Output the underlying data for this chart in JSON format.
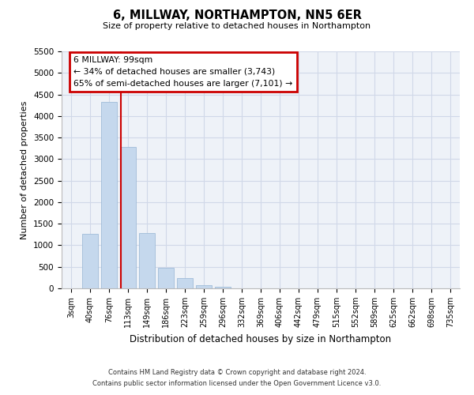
{
  "title": "6, MILLWAY, NORTHAMPTON, NN5 6ER",
  "subtitle": "Size of property relative to detached houses in Northampton",
  "xlabel": "Distribution of detached houses by size in Northampton",
  "ylabel": "Number of detached properties",
  "bar_labels": [
    "3sqm",
    "40sqm",
    "76sqm",
    "113sqm",
    "149sqm",
    "186sqm",
    "223sqm",
    "259sqm",
    "296sqm",
    "332sqm",
    "369sqm",
    "406sqm",
    "442sqm",
    "479sqm",
    "515sqm",
    "552sqm",
    "589sqm",
    "625sqm",
    "662sqm",
    "698sqm",
    "735sqm"
  ],
  "bar_values": [
    0,
    1270,
    4330,
    3280,
    1290,
    480,
    235,
    80,
    45,
    0,
    0,
    0,
    0,
    0,
    0,
    0,
    0,
    0,
    0,
    0,
    0
  ],
  "bar_color": "#c5d8ed",
  "bar_edgecolor": "#a0bcd8",
  "vline_x": 2.62,
  "vline_color": "#cc0000",
  "ylim": [
    0,
    5500
  ],
  "yticks": [
    0,
    500,
    1000,
    1500,
    2000,
    2500,
    3000,
    3500,
    4000,
    4500,
    5000,
    5500
  ],
  "annotation_title": "6 MILLWAY: 99sqm",
  "annotation_line1": "← 34% of detached houses are smaller (3,743)",
  "annotation_line2": "65% of semi-detached houses are larger (7,101) →",
  "annotation_box_edgecolor": "#cc0000",
  "footer1": "Contains HM Land Registry data © Crown copyright and database right 2024.",
  "footer2": "Contains public sector information licensed under the Open Government Licence v3.0.",
  "grid_color": "#d0d8e8",
  "bg_color": "#eef2f8"
}
